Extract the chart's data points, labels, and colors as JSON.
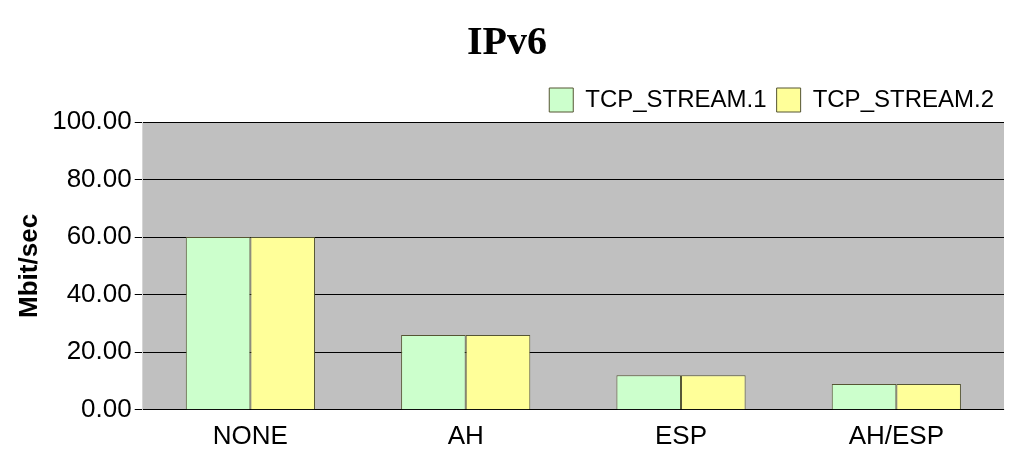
{
  "chart_data": {
    "type": "bar",
    "title": "IPv6",
    "ylabel": "Mbit/sec",
    "categories": [
      "NONE",
      "AH",
      "ESP",
      "AH/ESP"
    ],
    "series": [
      {
        "name": "TCP_STREAM.1",
        "color": "#ccffcc",
        "values": [
          60,
          26,
          12,
          9
        ]
      },
      {
        "name": "TCP_STREAM.2",
        "color": "#ffff99",
        "values": [
          60,
          26,
          12,
          9
        ]
      }
    ],
    "ylim": [
      0,
      100
    ],
    "yticks": [
      {
        "value": 0,
        "label": "0.00"
      },
      {
        "value": 20,
        "label": "20.00"
      },
      {
        "value": 40,
        "label": "40.00"
      },
      {
        "value": 60,
        "label": "60.00"
      },
      {
        "value": 80,
        "label": "80.00"
      },
      {
        "value": 100,
        "label": "100.00"
      }
    ],
    "grid": "y",
    "legend": "top right"
  }
}
